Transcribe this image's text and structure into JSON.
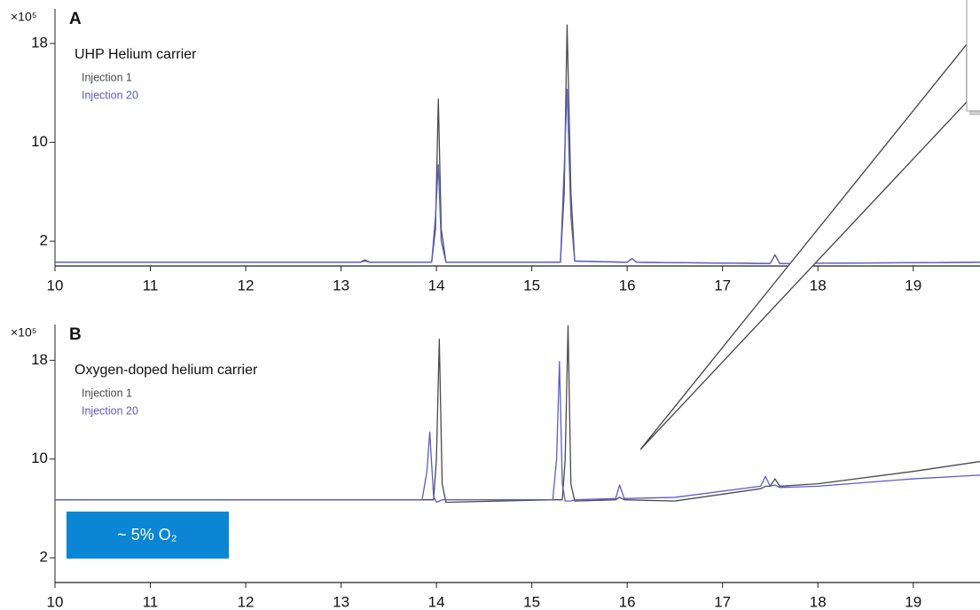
{
  "chart_data": [
    {
      "type": "line",
      "panel_label": "A",
      "title": "UHP Helium carrier",
      "y_unit": "×10⁵",
      "x": [
        10,
        13.2,
        13.25,
        13.3,
        13.95,
        13.99,
        14.02,
        14.05,
        14.1,
        15.3,
        15.34,
        15.37,
        15.41,
        15.45,
        16.0,
        16.05,
        16.1,
        17.5,
        17.55,
        17.6,
        19.7
      ],
      "series": [
        {
          "name": "Injection 1",
          "color": "#4a4a4a",
          "values": [
            0.3,
            0.3,
            0.5,
            0.3,
            0.3,
            3,
            13.5,
            3,
            0.3,
            0.3,
            6,
            19.5,
            6,
            0.4,
            0.3,
            0.6,
            0.3,
            0.2,
            0.9,
            0.2,
            0.3
          ]
        },
        {
          "name": "Injection 20",
          "color": "#5b5bd0",
          "values": [
            0.3,
            0.3,
            0.4,
            0.3,
            0.3,
            4,
            8.2,
            2,
            0.3,
            0.3,
            8,
            14.3,
            4,
            0.4,
            0.3,
            0.6,
            0.3,
            0.2,
            0.9,
            0.2,
            0.3
          ]
        }
      ],
      "xlim": [
        10,
        19.7
      ],
      "xticks": [
        10,
        11,
        12,
        13,
        14,
        15,
        16,
        17,
        18,
        19
      ],
      "ylim": [
        0,
        20.8
      ],
      "yticks": [
        2,
        10,
        18
      ]
    },
    {
      "type": "line",
      "panel_label": "B",
      "title": "Oxygen-doped helium carrier",
      "y_unit": "×10⁵",
      "annotation": "~ 5% O₂",
      "x": [
        10,
        13.85,
        13.9,
        13.93,
        13.97,
        14.0,
        14.03,
        14.06,
        14.1,
        15.22,
        15.26,
        15.29,
        15.32,
        15.35,
        15.38,
        15.41,
        15.45,
        15.88,
        15.92,
        15.97,
        16.5,
        17.4,
        17.45,
        17.5,
        17.55,
        17.6,
        18,
        19,
        19.7
      ],
      "series": [
        {
          "name": "Injection 1",
          "color": "#4a4a4a",
          "values": [
            6.7,
            6.7,
            6.7,
            6.7,
            6.7,
            10,
            19.7,
            8,
            6.5,
            6.7,
            6.7,
            6.7,
            6.7,
            10,
            20.8,
            8,
            6.6,
            6.7,
            6.9,
            6.7,
            6.6,
            7.6,
            7.8,
            7.8,
            8.4,
            7.8,
            8.0,
            9.0,
            9.8
          ]
        },
        {
          "name": "Injection 20",
          "color": "#5b5bd0",
          "values": [
            6.7,
            6.7,
            9,
            12.2,
            7,
            6.5,
            6.6,
            6.7,
            6.7,
            6.7,
            10,
            17.9,
            8,
            6.6,
            6.6,
            6.6,
            6.7,
            6.8,
            7.9,
            6.8,
            6.9,
            7.8,
            8.6,
            7.8,
            7.9,
            7.7,
            7.8,
            8.4,
            8.7
          ]
        }
      ],
      "xlim": [
        10,
        19.7
      ],
      "xticks": [
        10,
        11,
        12,
        13,
        14,
        15,
        16,
        17,
        18,
        19
      ],
      "ylim": [
        0,
        20.9
      ],
      "yticks": [
        2,
        10,
        18
      ]
    }
  ]
}
